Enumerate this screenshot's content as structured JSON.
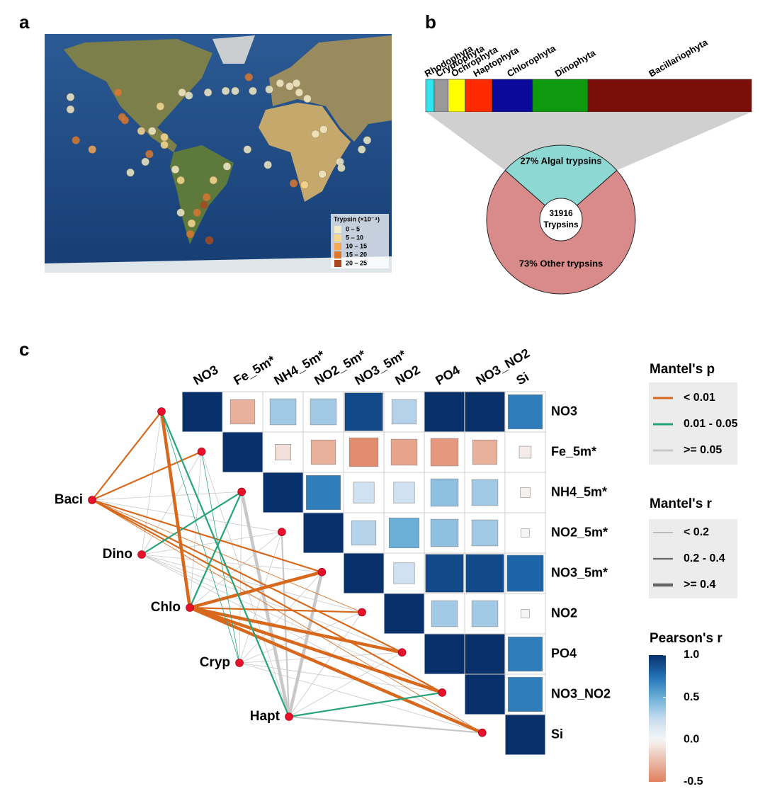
{
  "chart_data": [
    {
      "type": "map",
      "panel": "a",
      "legend_title": "Trypsin (×10⁻⁴)",
      "classes": [
        {
          "label": "0 – 5",
          "color": "#f3ecc8"
        },
        {
          "label": "5 – 10",
          "color": "#f7d991"
        },
        {
          "label": "10 – 15",
          "color": "#f2a958"
        },
        {
          "label": "15 – 20",
          "color": "#d9782f"
        },
        {
          "label": "20 – 25",
          "color": "#a8481e"
        }
      ],
      "xlim": [
        -175,
        80
      ],
      "ylim": [
        -75,
        80
      ],
      "lon": [
        -156,
        -156,
        -152,
        -140,
        -121,
        -118,
        -116,
        -104,
        -96,
        -112,
        -101,
        -98,
        -87,
        -87,
        -90,
        -74,
        -69,
        -55,
        -42,
        -35,
        -25,
        -22,
        -10,
        -2,
        5,
        10,
        12,
        18,
        24,
        30,
        62,
        58,
        42,
        43,
        29,
        16,
        8,
        -11,
        -26,
        -41,
        -51,
        -56,
        -58,
        -63,
        -67,
        -54,
        -75,
        -79,
        -75,
        -68
      ],
      "lat": [
        39,
        31,
        11,
        5,
        42,
        26,
        24,
        17,
        17,
        -10,
        -3,
        2,
        13,
        8,
        33,
        42,
        40,
        42,
        43,
        43,
        52,
        43,
        44,
        48,
        46,
        48,
        42,
        38,
        15,
        18,
        11,
        5,
        -3,
        -7,
        -11,
        -18,
        -17,
        -5,
        5,
        -6,
        -15,
        -26,
        -31,
        -36,
        -43,
        -54,
        -15,
        -8,
        -36,
        -50
      ],
      "class": [
        0,
        0,
        3,
        2,
        3,
        3,
        3,
        1,
        0,
        0,
        0,
        3,
        1,
        1,
        1,
        0,
        0,
        0,
        0,
        0,
        3,
        0,
        0,
        0,
        0,
        0,
        0,
        0,
        0,
        0,
        0,
        0,
        0,
        0,
        0,
        1,
        3,
        0,
        0,
        0,
        1,
        3,
        4,
        3,
        1,
        4,
        1,
        0,
        0,
        3
      ]
    },
    {
      "type": "stacked-bar",
      "panel": "b",
      "categories": [
        "Rhodophyta",
        "Cryptophyta",
        "Ochrophyta",
        "Haptophyta",
        "Chlorophyta",
        "Dinophyta",
        "Bacillariophyta"
      ],
      "values": [
        2.6,
        4.3,
        5.2,
        8.3,
        12.4,
        17,
        50.2
      ],
      "colors": [
        "#2ee6f0",
        "#999999",
        "#ffff00",
        "#ff2a00",
        "#0a0a9a",
        "#0e9a0e",
        "#7a0e08"
      ]
    },
    {
      "type": "pie",
      "values": [
        27,
        73
      ],
      "value_labels": [
        "27% Algal trypsins",
        "73% Other trypsins"
      ],
      "colors": [
        "#8ed8d4",
        "#d98a8a"
      ],
      "center_label": [
        "31916",
        "Trypsins"
      ]
    },
    {
      "type": "heatmap",
      "panel": "c",
      "categories": [
        "NO3",
        "Fe_5m*",
        "NH4_5m*",
        "NO2_5m*",
        "NO3_5m*",
        "NO2",
        "PO4",
        "NO3_NO2",
        "Si"
      ],
      "values": [
        [
          1,
          -0.3,
          0.35,
          0.35,
          0.9,
          0.3,
          1,
          1,
          0.7
        ],
        [
          null,
          1,
          -0.1,
          -0.3,
          -0.45,
          -0.35,
          -0.4,
          -0.3,
          -0.05
        ],
        [
          null,
          null,
          1,
          0.7,
          0.2,
          0.2,
          0.4,
          0.35,
          -0.03
        ],
        [
          null,
          null,
          null,
          1,
          0.3,
          0.5,
          0.4,
          0.35,
          0.02
        ],
        [
          null,
          null,
          null,
          null,
          1,
          0.2,
          0.9,
          0.9,
          0.8
        ],
        [
          null,
          null,
          null,
          null,
          null,
          1,
          0.35,
          0.35,
          0.02
        ],
        [
          null,
          null,
          null,
          null,
          null,
          null,
          1,
          1,
          0.7
        ],
        [
          null,
          null,
          null,
          null,
          null,
          null,
          null,
          1,
          0.7
        ],
        [
          null,
          null,
          null,
          null,
          null,
          null,
          null,
          null,
          1
        ]
      ],
      "colorbar": {
        "title": "Pearson's r",
        "lim": [
          -0.5,
          1
        ],
        "ticks": [
          {
            "value": 1,
            "label": "1.0"
          },
          0.5,
          {
            "value": 0,
            "label": "0.0"
          },
          -0.5
        ]
      }
    },
    {
      "type": "network",
      "nodes": [
        "Baci",
        "Dino",
        "Chlo",
        "Cryp",
        "Hapt"
      ],
      "links": [
        [
          [
            0,
            1
          ],
          [
            0,
            1
          ],
          [
            2,
            0
          ],
          [
            2,
            0
          ],
          [
            0,
            1
          ],
          [
            0,
            0
          ],
          [
            0,
            1
          ],
          [
            0,
            1
          ],
          [
            0,
            0
          ]
        ],
        [
          [
            2,
            0
          ],
          [
            2,
            0
          ],
          [
            1,
            1
          ],
          [
            2,
            0
          ],
          [
            2,
            0
          ],
          [
            2,
            0
          ],
          [
            2,
            0
          ],
          [
            2,
            0
          ],
          [
            2,
            0
          ]
        ],
        [
          [
            0,
            2
          ],
          [
            2,
            0
          ],
          [
            1,
            1
          ],
          [
            2,
            0
          ],
          [
            0,
            2
          ],
          [
            0,
            1
          ],
          [
            0,
            2
          ],
          [
            0,
            2
          ],
          [
            0,
            2
          ]
        ],
        [
          [
            1,
            0
          ],
          [
            1,
            0
          ],
          [
            2,
            0
          ],
          [
            2,
            0
          ],
          [
            2,
            0
          ],
          [
            2,
            0
          ],
          [
            2,
            0
          ],
          [
            2,
            0
          ],
          [
            2,
            0
          ]
        ],
        [
          [
            1,
            1
          ],
          [
            2,
            0
          ],
          [
            2,
            2
          ],
          [
            2,
            1
          ],
          [
            2,
            2
          ],
          [
            2,
            0
          ],
          [
            2,
            0
          ],
          [
            1,
            1
          ],
          [
            2,
            1
          ]
        ]
      ],
      "p_legend": {
        "title": "Mantel's p",
        "labels": [
          "< 0.01",
          "0.01 - 0.05",
          ">= 0.05"
        ],
        "colors": [
          "#d8691c",
          "#26a37c",
          "#c8c8c8"
        ]
      },
      "r_legend": {
        "title": "Mantel's r",
        "labels": [
          "< 0.2",
          "0.2 - 0.4",
          ">= 0.4"
        ]
      }
    }
  ]
}
